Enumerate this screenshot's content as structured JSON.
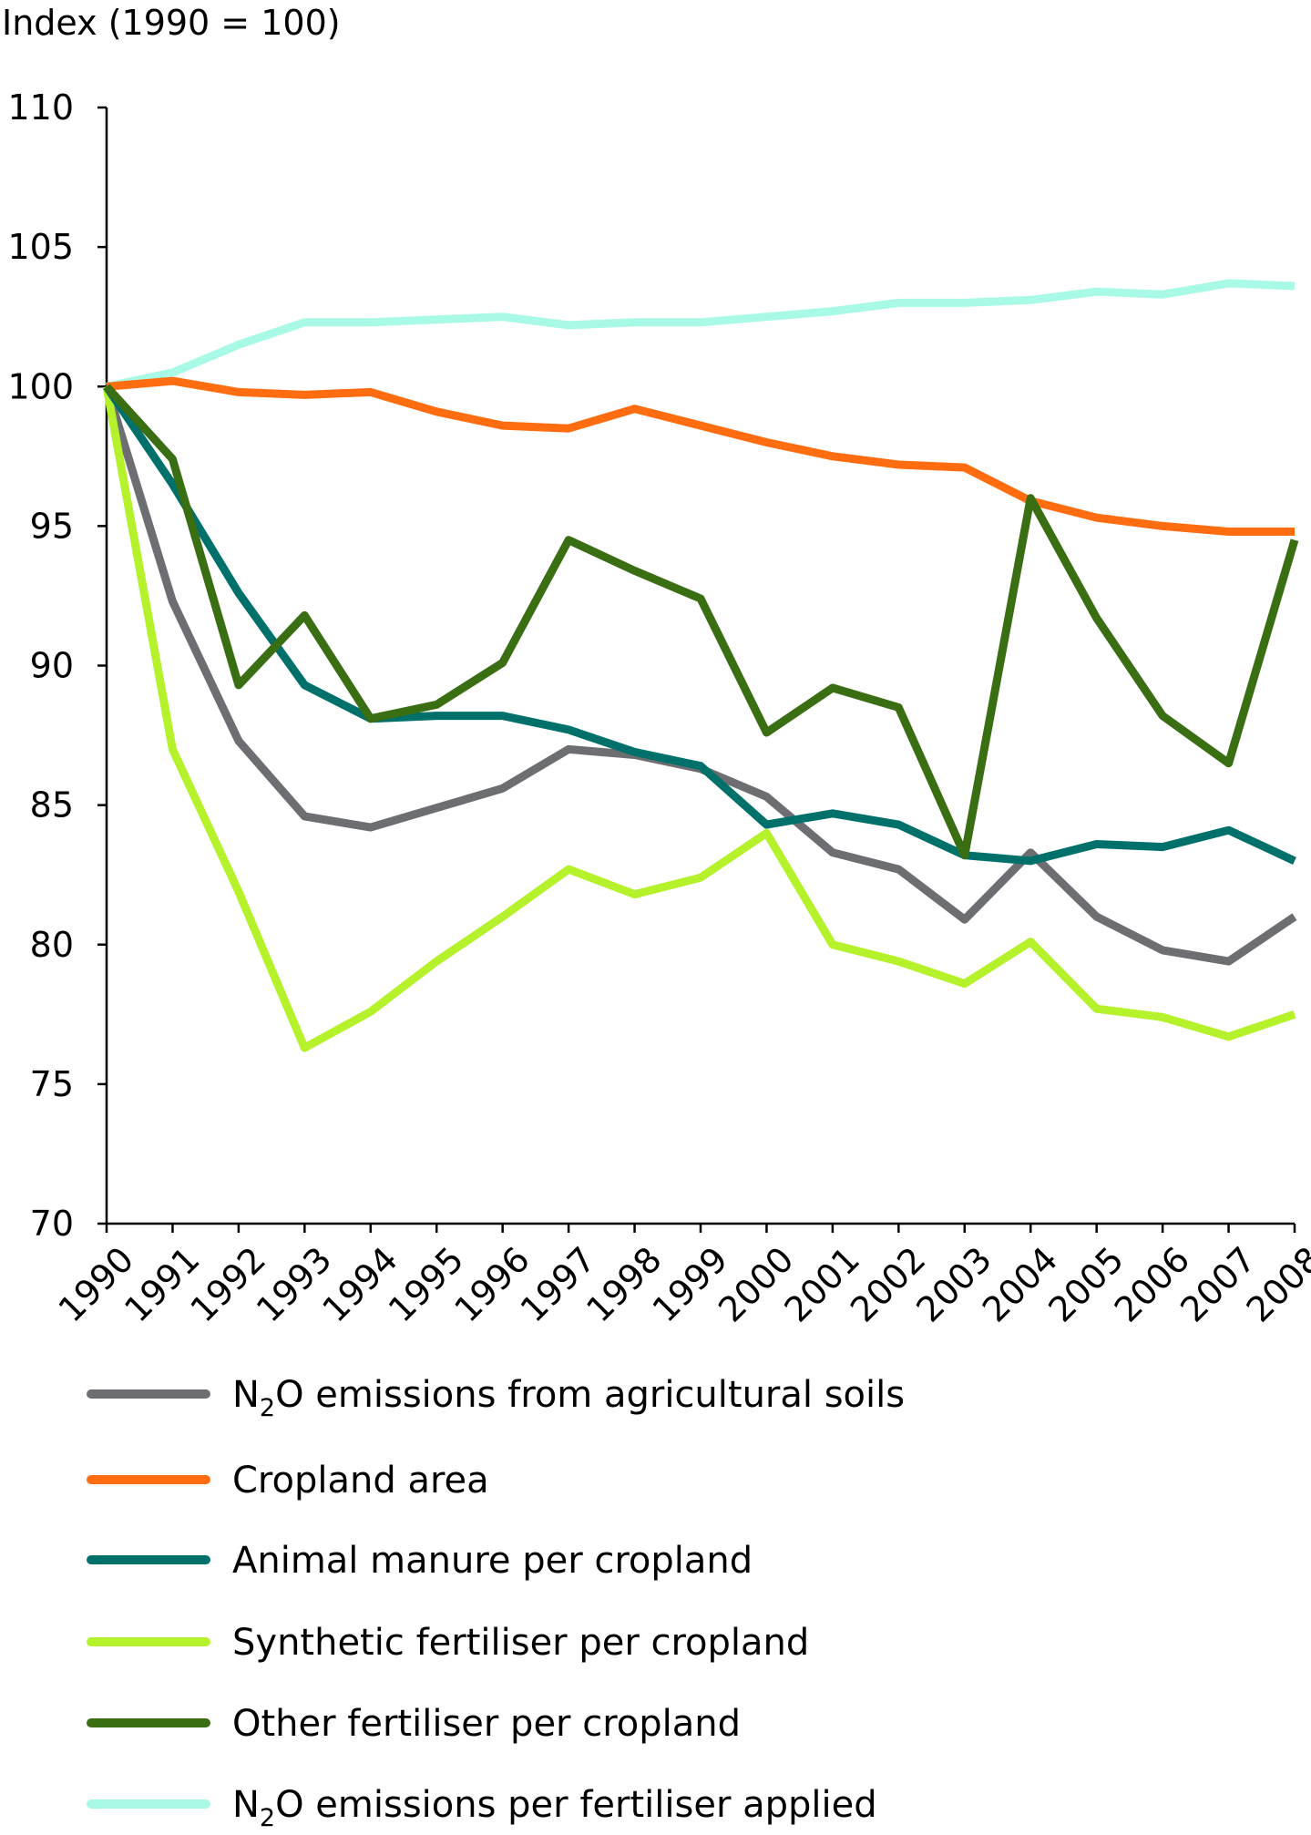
{
  "chart_data": {
    "type": "line",
    "ylabel": "Index (1990 = 100)",
    "ylim": [
      70,
      110
    ],
    "yticks": [
      70,
      75,
      80,
      85,
      90,
      95,
      100,
      105,
      110
    ],
    "categories": [
      "1990",
      "1991",
      "1992",
      "1993",
      "1994",
      "1995",
      "1996",
      "1997",
      "1998",
      "1999",
      "2000",
      "2001",
      "2002",
      "2003",
      "2004",
      "2005",
      "2006",
      "2007",
      "2008"
    ],
    "grid": false,
    "legend_position": "bottom",
    "series": [
      {
        "name_parts": [
          "N",
          "2",
          "O emissions from agricultural soils"
        ],
        "color": "#6d6e71",
        "values": [
          100,
          92.3,
          87.3,
          84.6,
          84.2,
          84.9,
          85.6,
          87.0,
          86.8,
          86.3,
          85.3,
          83.3,
          82.7,
          80.9,
          83.3,
          81.0,
          79.8,
          79.4,
          81.0
        ]
      },
      {
        "name_parts": [
          "Cropland area"
        ],
        "color": "#ff6d10",
        "values": [
          100,
          100.2,
          99.8,
          99.7,
          99.8,
          99.1,
          98.6,
          98.5,
          99.2,
          98.6,
          98.0,
          97.5,
          97.2,
          97.1,
          95.9,
          95.3,
          95.0,
          94.8,
          94.8
        ]
      },
      {
        "name_parts": [
          "Animal manure per cropland"
        ],
        "color": "#00706b",
        "values": [
          100,
          96.5,
          92.6,
          89.3,
          88.1,
          88.2,
          88.2,
          87.7,
          86.9,
          86.4,
          84.3,
          84.7,
          84.3,
          83.2,
          83.0,
          83.6,
          83.5,
          84.1,
          83.0
        ]
      },
      {
        "name_parts": [
          "Synthetic fertiliser per cropland"
        ],
        "color": "#b5f22b",
        "values": [
          100,
          87.0,
          81.9,
          76.3,
          77.6,
          79.4,
          81.0,
          82.7,
          81.8,
          82.4,
          84.0,
          80.0,
          79.4,
          78.6,
          80.1,
          77.7,
          77.4,
          76.7,
          77.5
        ]
      },
      {
        "name_parts": [
          "Other fertiliser per cropland"
        ],
        "color": "#3a6e13",
        "values": [
          100,
          97.4,
          89.3,
          91.8,
          88.1,
          88.6,
          90.1,
          94.5,
          93.4,
          92.4,
          87.6,
          89.2,
          88.5,
          83.2,
          96.0,
          91.7,
          88.2,
          86.5,
          94.5
        ]
      },
      {
        "name_parts": [
          "N",
          "2",
          "O emissions per fertiliser applied"
        ],
        "color": "#a8fae7",
        "values": [
          100,
          100.5,
          101.5,
          102.3,
          102.3,
          102.4,
          102.5,
          102.2,
          102.3,
          102.3,
          102.5,
          102.7,
          103.0,
          103.0,
          103.1,
          103.4,
          103.3,
          103.7,
          103.6
        ]
      }
    ]
  }
}
